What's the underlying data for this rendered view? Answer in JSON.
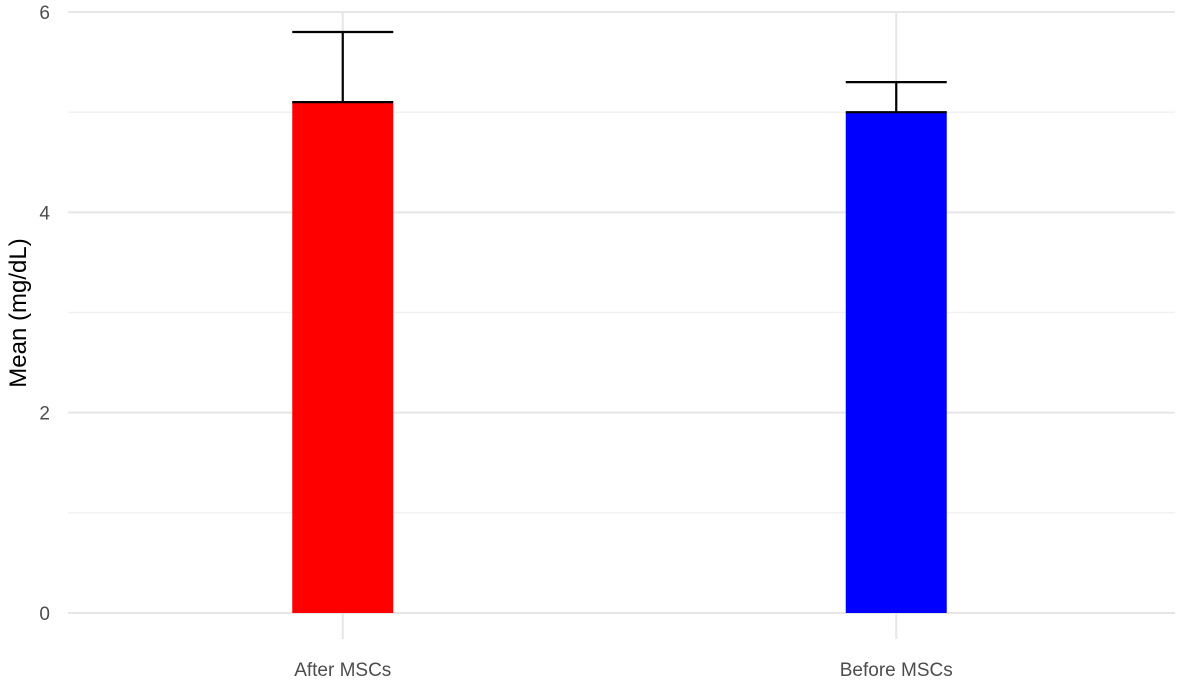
{
  "chart_data": {
    "type": "bar",
    "title": "",
    "xlabel": "",
    "ylabel": "Mean (mg/dL)",
    "categories": [
      "After MSCs",
      "Before MSCs"
    ],
    "values": [
      5.1,
      5.0
    ],
    "error_upper": [
      5.8,
      5.3
    ],
    "colors": [
      "#ff0000",
      "#0000ff"
    ],
    "ylim": [
      0,
      6
    ],
    "yticks": [
      0,
      2,
      4,
      6
    ],
    "grid": true,
    "legend": "none"
  }
}
